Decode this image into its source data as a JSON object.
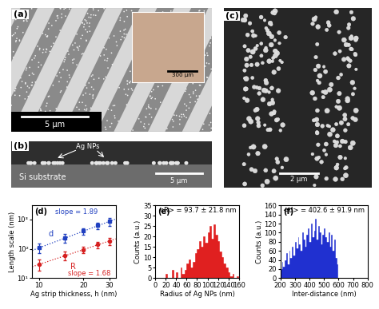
{
  "panels": [
    {
      "label": "(a)",
      "scale_bar": "5 μm",
      "inset_scale_bar": "300 μm"
    },
    {
      "label": "(b)",
      "annotations": [
        "Ag NPs",
        "Si substrate"
      ],
      "scale_bar": "5 μm"
    },
    {
      "label": "(c)",
      "scale_bar": "2 μm"
    }
  ],
  "chart_data": [
    {
      "type": "scatter",
      "panel": "(d)",
      "x_label": "Ag strip thickness, h (nm)",
      "y_label": "Length scale (nm)",
      "log": true,
      "xlim": [
        9,
        33
      ],
      "xticks": [
        10,
        20,
        30
      ],
      "ylim": [
        10,
        3000
      ],
      "yticks": [
        {
          "value": 10,
          "label": "10¹"
        },
        {
          "value": 100,
          "label": "10²"
        },
        {
          "value": 1000,
          "label": "10³"
        }
      ],
      "series": [
        {
          "name": "d",
          "color": "#2040c0",
          "marker": "square",
          "x": [
            10,
            15,
            20,
            25,
            30
          ],
          "values": [
            110,
            240,
            400,
            620,
            860
          ],
          "errors": [
            40,
            80,
            92,
            150,
            250
          ],
          "fit": {
            "x": [
              9,
              33
            ],
            "values": [
              88,
              1033
            ],
            "line_style": "dotted",
            "annotation": "slope = 1.89"
          }
        },
        {
          "name": "R",
          "color": "#d62020",
          "marker": "circle",
          "x": [
            10,
            15,
            20,
            25,
            30
          ],
          "values": [
            30,
            60,
            94,
            140,
            185
          ],
          "errors": [
            12,
            20,
            22,
            35,
            50
          ],
          "fit": {
            "x": [
              9,
              33
            ],
            "values": [
              24.5,
              218
            ],
            "line_style": "dotted",
            "annotation": "slope = 1.68"
          }
        }
      ]
    },
    {
      "type": "histogram",
      "panel": "(e)",
      "x_label": "Radius of Ag NPs (nm)",
      "y_label": "Counts (a.u.)",
      "annotation": "<R> = 93.7 ± 21.8 nm",
      "color": "#e02020",
      "xlim": [
        0,
        160
      ],
      "xticks": [
        0,
        20,
        40,
        60,
        80,
        100,
        120,
        140,
        160
      ],
      "ylim": [
        0,
        35
      ],
      "yticks": [
        0,
        5,
        10,
        15,
        20,
        25,
        30,
        35
      ],
      "bins": [
        20,
        24,
        28,
        32,
        36,
        40,
        44,
        48,
        52,
        56,
        60,
        64,
        68,
        72,
        76,
        80,
        84,
        88,
        92,
        96,
        100,
        104,
        108,
        112,
        116,
        120,
        124,
        128,
        132,
        136,
        140,
        144,
        148,
        152,
        156,
        160
      ],
      "values": [
        2,
        0,
        0,
        4,
        0,
        3,
        0,
        5,
        2,
        4,
        7,
        9,
        5,
        8,
        12,
        14,
        18,
        15,
        20,
        17,
        22,
        25,
        19,
        26,
        21,
        18,
        13,
        10,
        7,
        5,
        3,
        1,
        2,
        0,
        1
      ]
    },
    {
      "type": "histogram",
      "panel": "(f)",
      "x_label": "Inter-distance (nm)",
      "y_label": "Counts (a.u.)",
      "annotation": "<d> = 402.6 ± 91.9 nm",
      "color": "#2030d0",
      "xlim": [
        200,
        800
      ],
      "xticks": [
        200,
        300,
        400,
        500,
        600,
        700,
        800
      ],
      "ylim": [
        0,
        160
      ],
      "yticks": [
        0,
        20,
        40,
        60,
        80,
        100,
        120,
        140,
        160
      ],
      "bins": [
        200,
        210,
        220,
        230,
        240,
        250,
        260,
        270,
        280,
        290,
        300,
        310,
        320,
        330,
        340,
        350,
        360,
        370,
        380,
        390,
        400,
        410,
        420,
        430,
        440,
        450,
        460,
        470,
        480,
        490,
        500,
        510,
        520,
        530,
        540,
        550,
        560,
        570,
        580,
        590,
        600
      ],
      "values": [
        20,
        35,
        25,
        40,
        55,
        30,
        60,
        45,
        70,
        50,
        80,
        65,
        90,
        75,
        60,
        100,
        85,
        70,
        95,
        110,
        80,
        120,
        90,
        105,
        130,
        85,
        115,
        100,
        75,
        95,
        110,
        90,
        80,
        100,
        70,
        95,
        60,
        85,
        45,
        30
      ]
    }
  ]
}
